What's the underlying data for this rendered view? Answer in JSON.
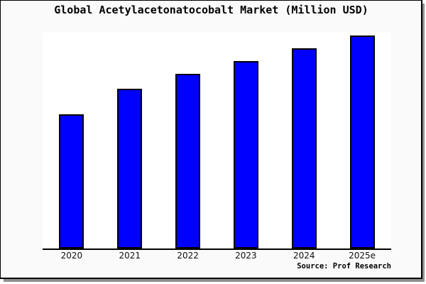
{
  "chart_data": {
    "type": "bar",
    "title": "Global Acetylacetonatocobalt Market (Million USD)",
    "categories": [
      "2020",
      "2021",
      "2022",
      "2023",
      "2024",
      "2025e"
    ],
    "values": [
      63,
      75,
      82,
      88,
      94,
      100
    ],
    "value_scale_note": "No y-axis ticks are shown in the chart; values are relative bar heights with the tallest bar (2025e) = 100",
    "xlabel": "",
    "ylabel": "",
    "ylim": [
      0,
      102
    ],
    "grid": false,
    "legend": false,
    "bar_color": "#0000ff",
    "bar_border_color": "#000000",
    "source": "Source: Prof Research"
  },
  "colors": {
    "frame_background": "#fafafa",
    "plot_background": "#ffffff",
    "frame_border": "#000000",
    "drop_shadow": "#909090",
    "bar_fill": "#0000ff",
    "text": "#000000"
  }
}
